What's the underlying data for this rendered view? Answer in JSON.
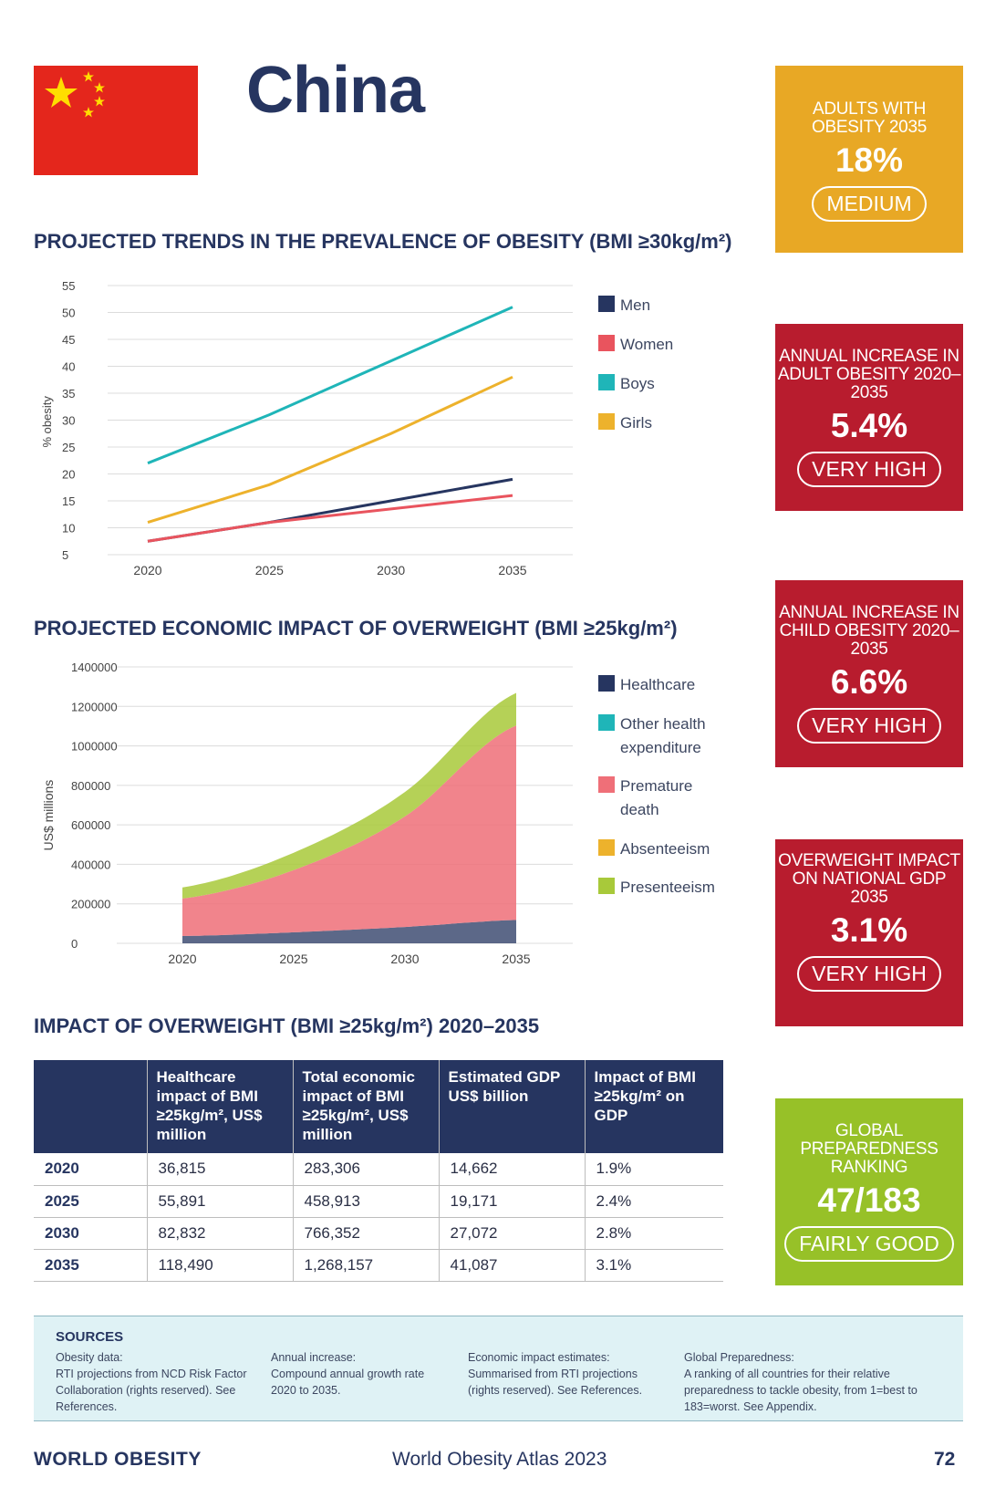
{
  "header": {
    "country": "China"
  },
  "headings": {
    "trends": "PROJECTED TRENDS IN THE PREVALENCE OF OBESITY (BMI ≥30kg/m²)",
    "economic": "PROJECTED ECONOMIC IMPACT OF OVERWEIGHT (BMI ≥25kg/m²)",
    "impact": "IMPACT OF OVERWEIGHT (BMI ≥25kg/m²) 2020–2035"
  },
  "stats": [
    {
      "label": "ADULTS WITH OBESITY 2035",
      "value": "18%",
      "badge": "MEDIUM",
      "color": "#e8a825"
    },
    {
      "label": "ANNUAL INCREASE IN ADULT OBESITY 2020–2035",
      "value": "5.4%",
      "badge": "VERY HIGH",
      "color": "#b81c2e"
    },
    {
      "label": "ANNUAL INCREASE IN CHILD OBESITY 2020–2035",
      "value": "6.6%",
      "badge": "VERY HIGH",
      "color": "#b81c2e"
    },
    {
      "label": "OVERWEIGHT IMPACT ON NATIONAL GDP 2035",
      "value": "3.1%",
      "badge": "VERY HIGH",
      "color": "#b81c2e"
    },
    {
      "label": "GLOBAL PREPAREDNESS RANKING",
      "value": "47/183",
      "badge": "FAIRLY GOOD",
      "color": "#97c128"
    }
  ],
  "chart_data": [
    {
      "type": "line",
      "ylabel": "% obesity",
      "xlabel": "",
      "x": [
        2020,
        2025,
        2030,
        2035
      ],
      "ylim": [
        5,
        55
      ],
      "yticks": [
        5,
        10,
        15,
        20,
        25,
        30,
        35,
        40,
        45,
        50,
        55
      ],
      "grid": true,
      "legend_position": "right",
      "series": [
        {
          "name": "Men",
          "color": "#263560",
          "values": [
            7.5,
            11,
            15,
            19
          ]
        },
        {
          "name": "Women",
          "color": "#e9545e",
          "values": [
            7.5,
            11,
            13.5,
            16
          ]
        },
        {
          "name": "Boys",
          "color": "#1fb5b8",
          "values": [
            22,
            31,
            41,
            51
          ]
        },
        {
          "name": "Girls",
          "color": "#edb22c",
          "values": [
            11,
            18,
            27.5,
            38
          ]
        }
      ]
    },
    {
      "type": "area",
      "ylabel": "US$ millions",
      "xlabel": "",
      "x": [
        2020,
        2025,
        2030,
        2035
      ],
      "ylim": [
        0,
        1400000
      ],
      "yticks": [
        0,
        200000,
        400000,
        600000,
        800000,
        1000000,
        1200000,
        1400000
      ],
      "grid": true,
      "stacked": true,
      "legend_position": "right",
      "series": [
        {
          "name": "Healthcare",
          "color": "#263560",
          "values": [
            36815,
            55891,
            82832,
            118490
          ]
        },
        {
          "name": "Other health expenditure",
          "color": "#1fb5b8",
          "values": [
            0,
            0,
            0,
            0
          ]
        },
        {
          "name": "Premature death",
          "color": "#ef6f78",
          "values": [
            190000,
            315000,
            560000,
            985000
          ]
        },
        {
          "name": "Absenteeism",
          "color": "#edb22c",
          "values": [
            0,
            0,
            0,
            0
          ]
        },
        {
          "name": "Presenteeism",
          "color": "#a8c93a",
          "values": [
            56491,
            88022,
            123520,
            164667
          ]
        }
      ]
    }
  ],
  "table": {
    "headers": [
      "",
      "Healthcare impact of BMI ≥25kg/m², US$ million",
      "Total economic impact of BMI ≥25kg/m², US$ million",
      "Estimated GDP US$ billion",
      "Impact of BMI ≥25kg/m² on GDP"
    ],
    "rows": [
      [
        "2020",
        "36,815",
        "283,306",
        "14,662",
        "1.9%"
      ],
      [
        "2025",
        "55,891",
        "458,913",
        "19,171",
        "2.4%"
      ],
      [
        "2030",
        "82,832",
        "766,352",
        "27,072",
        "2.8%"
      ],
      [
        "2035",
        "118,490",
        "1,268,157",
        "41,087",
        "3.1%"
      ]
    ]
  },
  "sources": {
    "title": "SOURCES",
    "columns": [
      {
        "head": "Obesity data:",
        "body": "RTI projections from NCD Risk Factor Collaboration (rights reserved). See References."
      },
      {
        "head": "Annual increase:",
        "body": "Compound annual growth rate 2020 to 2035."
      },
      {
        "head": "Economic impact estimates:",
        "body": "Summarised from RTI projections (rights reserved). See References."
      },
      {
        "head": "Global Preparedness:",
        "body": "A ranking of all countries for their relative preparedness to tackle obesity, from 1=best to 183=worst. See Appendix."
      }
    ]
  },
  "footer": {
    "logo": "WORLD OBESITY",
    "publication": "World Obesity Atlas 2023",
    "page": "72"
  }
}
